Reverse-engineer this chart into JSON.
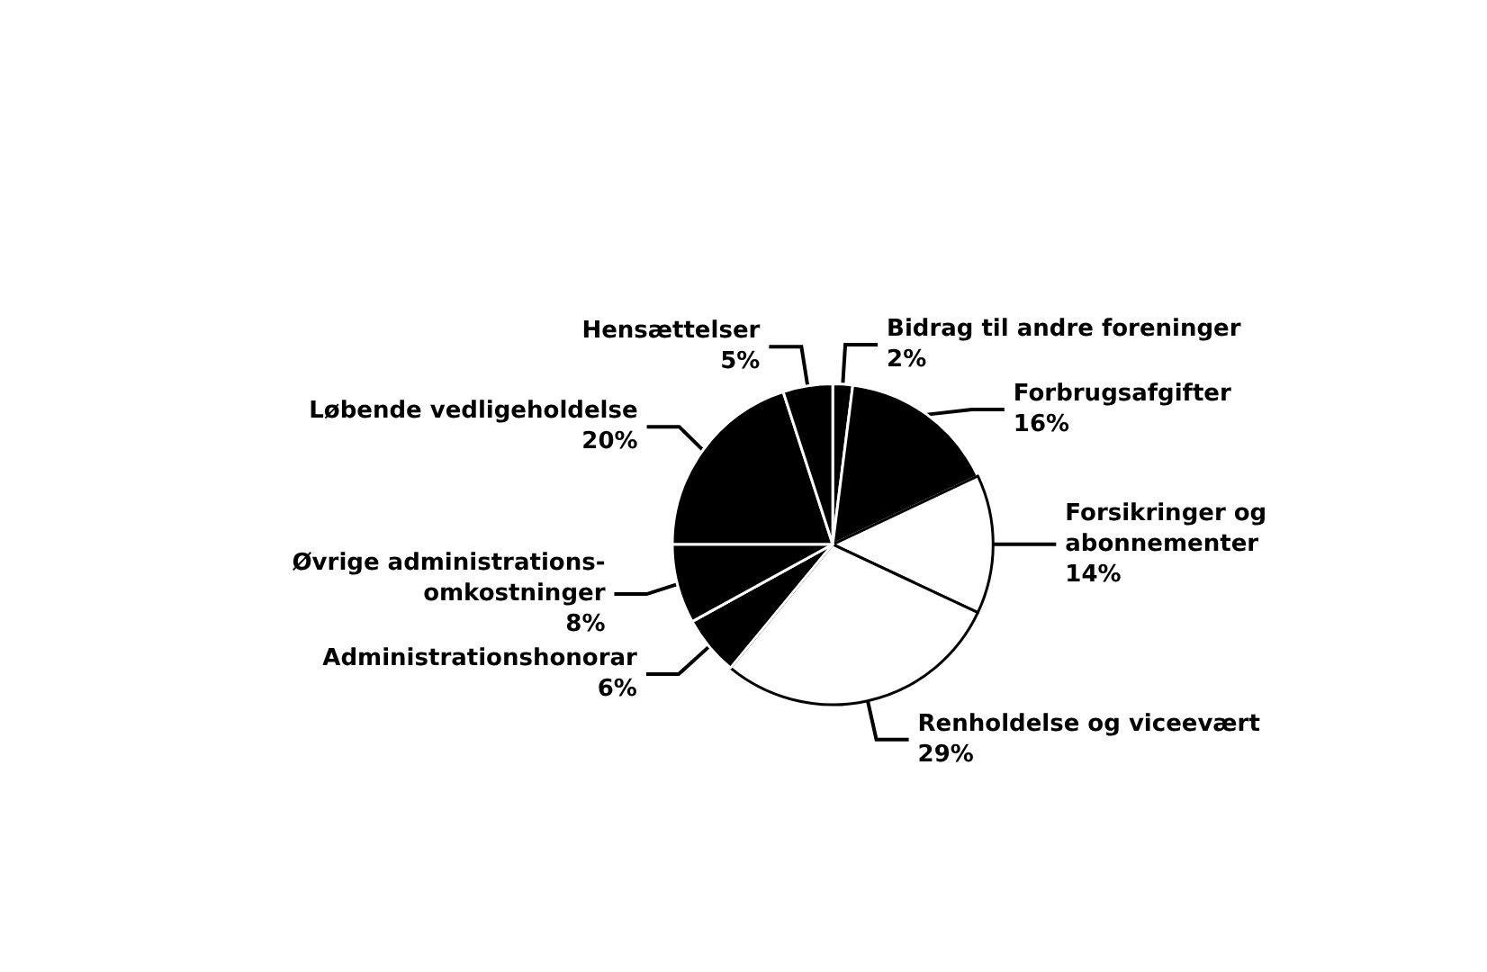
{
  "chart_data": {
    "type": "pie",
    "categories": [
      "Bidrag til andre foreninger",
      "Forbrugsafgifter",
      "Forsikringer og abonnementer",
      "Renholdelse og viceevært",
      "Administrationshonorar",
      "Øvrige administrations-omkostninger",
      "Løbende vedligeholdelse",
      "Hensættelser"
    ],
    "values": [
      2,
      16,
      14,
      29,
      6,
      8,
      20,
      5
    ],
    "colors": [
      "#000000",
      "#000000",
      "#ffffff",
      "#ffffff",
      "#000000",
      "#000000",
      "#000000",
      "#000000"
    ],
    "value_labels": [
      "2%",
      "16%",
      "14%",
      "29%",
      "6%",
      "8%",
      "20%",
      "5%"
    ],
    "legend": false
  }
}
